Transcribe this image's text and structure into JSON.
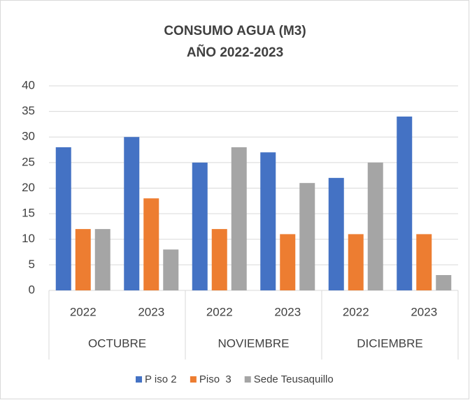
{
  "chart_data": {
    "type": "bar",
    "title": "CONSUMO AGUA (M3)",
    "subtitle": "AÑO 2022-2023",
    "categories": [
      "2022",
      "2023",
      "2022",
      "2023",
      "2022",
      "2023"
    ],
    "category_groups": [
      "OCTUBRE",
      "NOVIEMBRE",
      "DICIEMBRE"
    ],
    "series": [
      {
        "name": "P iso 2",
        "color": "#4472c4",
        "values": [
          28,
          30,
          25,
          27,
          22,
          34
        ]
      },
      {
        "name": "Piso  3",
        "color": "#ed7d31",
        "values": [
          12,
          18,
          12,
          11,
          11,
          11
        ]
      },
      {
        "name": "Sede Teusaquillo",
        "color": "#a5a5a5",
        "values": [
          12,
          8,
          28,
          21,
          25,
          3
        ]
      }
    ],
    "ylim": [
      0,
      40
    ],
    "yticks": [
      0,
      5,
      10,
      15,
      20,
      25,
      30,
      35,
      40
    ],
    "grid": true,
    "legend": "bottom"
  }
}
